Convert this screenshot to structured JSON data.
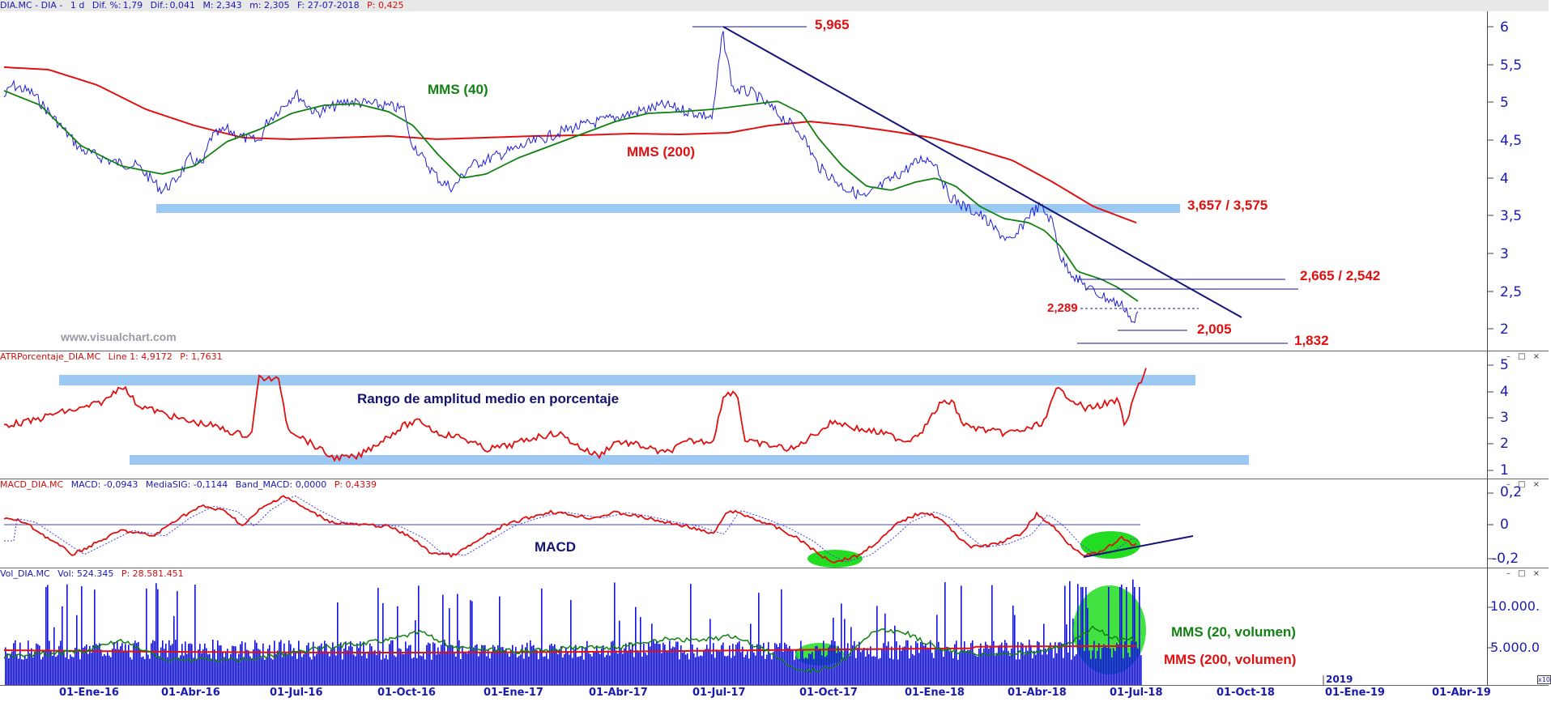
{
  "price_panel": {
    "header": {
      "symbol": "DIA.MC - DIA -",
      "timeframe": "1 d",
      "dif_pct_label": "Dif. %:",
      "dif_pct_value": "1,79",
      "dif_label": "Dif.:",
      "dif_value": "0,041",
      "max": "M: 2,343",
      "min": "m: 2,305",
      "date": "F: 27-07-2018",
      "close": "P: 0,425"
    },
    "yticks": [
      "6",
      "5,5",
      "5",
      "4,5",
      "4",
      "3,5",
      "3",
      "2,5",
      "2"
    ],
    "annotations": {
      "peak": "5,965",
      "sma40": "MMS (40)",
      "sma200": "MMS (200)",
      "support_zone": "3,657 / 3,575",
      "resistance_zone": "2,665 / 2,542",
      "level_2289": "2,289",
      "level_2005": "2,005",
      "level_1832": "1,832"
    },
    "watermark": "www.visualchart.com"
  },
  "atr_panel": {
    "header": {
      "name": "ATRPorcentaje_DIA.MC",
      "line": "Line 1: 4,9172",
      "close": "P: 1,7631"
    },
    "yticks": [
      "5",
      "4",
      "3",
      "2",
      "1"
    ],
    "label": "Rango de amplitud medio en porcentaje"
  },
  "macd_panel": {
    "header": {
      "name": "MACD_DIA.MC",
      "macd": "MACD: -0,0943",
      "signal": "MediaSIG: -0,1144",
      "band": "Band_MACD: 0,0000",
      "close": "P: 0,4339"
    },
    "yticks": [
      "0,2",
      "0",
      "-0,2"
    ],
    "label": "MACD"
  },
  "vol_panel": {
    "header": {
      "name": "Vol_DIA.MC",
      "vol": "Vol: 524.345",
      "close": "P: 28.581.451"
    },
    "yticks": [
      "10.000.",
      "5.000.0"
    ],
    "label_sma20": "MMS (20, volumen)",
    "label_sma200": "MMS (200, volumen)"
  },
  "x_axis": {
    "ticks": [
      "01-Ene-16",
      "01-Abr-16",
      "01-Jul-16",
      "01-Oct-16",
      "01-Ene-17",
      "01-Abr-17",
      "01-Jul-17",
      "01-Oct-17",
      "01-Ene-18",
      "01-Abr-18",
      "01-Jul-18",
      "01-Oct-18",
      "01-Ene-19",
      "01-Abr-19"
    ],
    "year_marker": "2019",
    "scale_marker": "x10"
  },
  "window_controls": "– □ ×",
  "colors": {
    "price": "#2020d0",
    "sma40": "#108010",
    "sma200": "#e01010",
    "band": "#9cc8f4",
    "trendline": "#14147a",
    "highlight": "#22dd22"
  }
}
